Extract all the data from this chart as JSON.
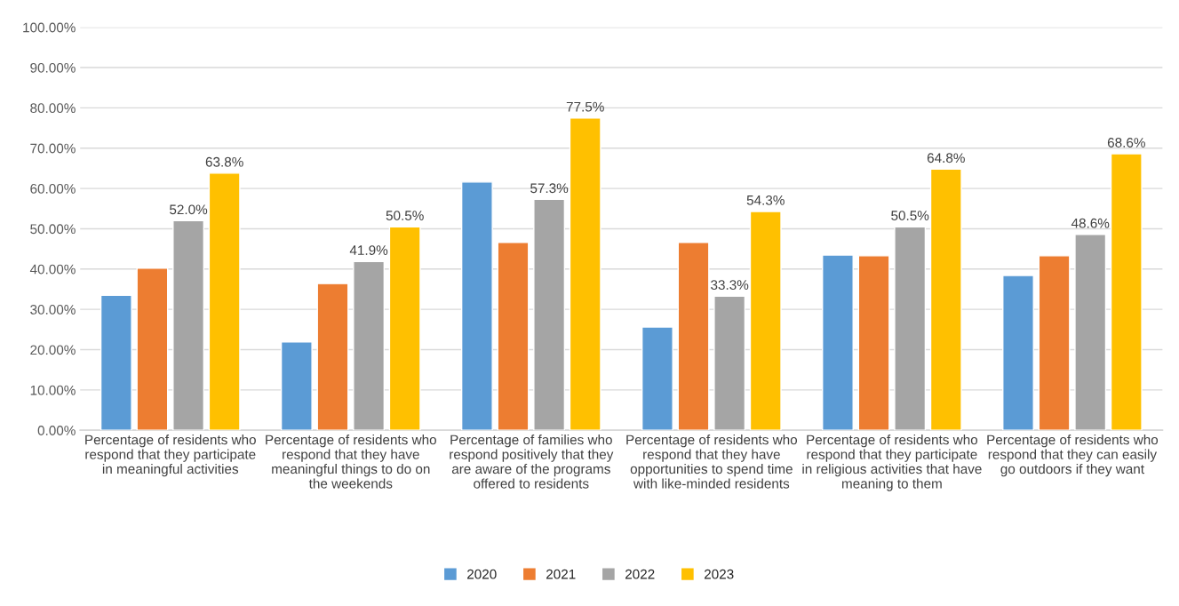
{
  "chart_data": {
    "type": "bar",
    "categories": [
      "Percentage of residents who\nrespond that they participate\nin meaningful activities",
      "Percentage of residents who\nrespond that they have\nmeaningful things to do on\nthe weekends",
      "Percentage of families who\nrespond positively that they\nare aware of the programs\noffered to residents",
      "Percentage of residents who\nrespond that they have\nopportunities to spend time\nwith like-minded residents",
      "Percentage of residents who\nrespond that they participate\nin religious activities that have\nmeaning to them",
      "Percentage of residents who\nrespond that they can easily\ngo outdoors if they want"
    ],
    "series": [
      {
        "name": "2020",
        "color": "#5b9bd5",
        "values": [
          33.5,
          21.9,
          61.6,
          25.6,
          43.5,
          38.4
        ]
      },
      {
        "name": "2021",
        "color": "#ed7d31",
        "values": [
          40.2,
          36.4,
          46.6,
          46.6,
          43.3,
          43.3
        ]
      },
      {
        "name": "2022",
        "color": "#a5a5a5",
        "values": [
          52.0,
          41.9,
          57.3,
          33.3,
          50.5,
          48.6
        ],
        "value_labels": [
          "52.0%",
          "41.9%",
          "57.3%",
          "33.3%",
          "50.5%",
          "48.6%"
        ]
      },
      {
        "name": "2023",
        "color": "#ffc000",
        "values": [
          63.8,
          50.5,
          77.5,
          54.3,
          64.8,
          68.6
        ],
        "value_labels": [
          "63.8%",
          "50.5%",
          "77.5%",
          "54.3%",
          "64.8%",
          "68.6%"
        ]
      }
    ],
    "ylim": [
      0,
      100
    ],
    "yticks": [
      {
        "value": 0,
        "label": "0.00%"
      },
      {
        "value": 10,
        "label": "10.00%"
      },
      {
        "value": 20,
        "label": "20.00%"
      },
      {
        "value": 30,
        "label": "30.00%"
      },
      {
        "value": 40,
        "label": "40.00%"
      },
      {
        "value": 50,
        "label": "50.00%"
      },
      {
        "value": 60,
        "label": "60.00%"
      },
      {
        "value": 70,
        "label": "70.00%"
      },
      {
        "value": 80,
        "label": "80.00%"
      },
      {
        "value": 90,
        "label": "90.00%"
      },
      {
        "value": 100,
        "label": "100.00%"
      }
    ],
    "grid": "y",
    "legend": "bottom"
  }
}
